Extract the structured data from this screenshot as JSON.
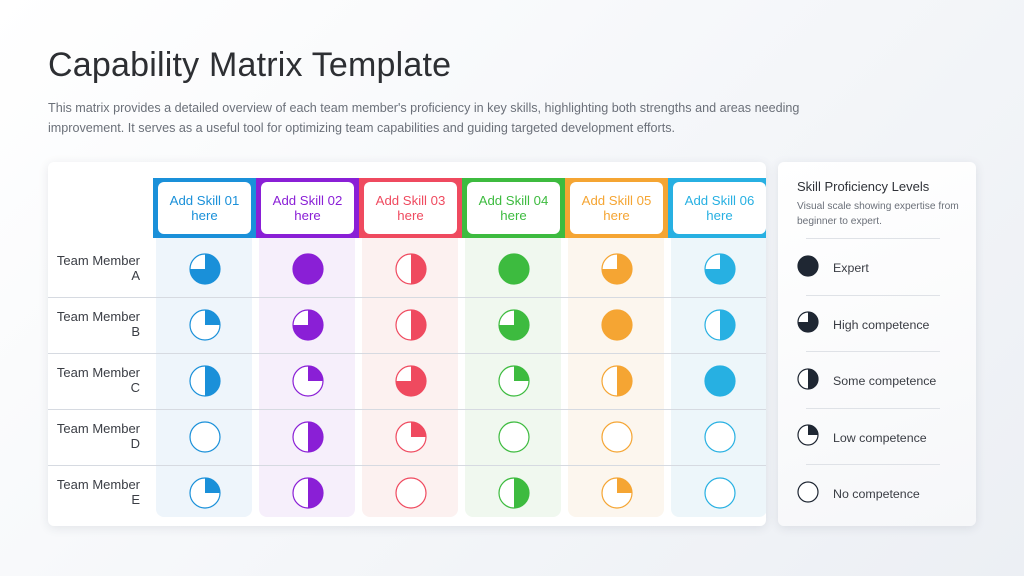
{
  "header": {
    "title": "Capability Matrix Template",
    "description": "This matrix provides a detailed overview of each team member's proficiency in key skills, highlighting both strengths and areas needing improvement. It serves as a useful tool for optimizing team capabilities and guiding targeted development efforts."
  },
  "matrix": {
    "skills": [
      {
        "label": "Add Skill 01 here",
        "color": "#1a90d9",
        "tint": "#eef5fb"
      },
      {
        "label": "Add Skill 02 here",
        "color": "#8a1fd6",
        "tint": "#f6effb"
      },
      {
        "label": "Add Skill 03 here",
        "color": "#ef4a5f",
        "tint": "#fcf1f0"
      },
      {
        "label": "Add Skill 04 here",
        "color": "#3dbb3f",
        "tint": "#f0f8ef"
      },
      {
        "label": "Add Skill 05 here",
        "color": "#f5a533",
        "tint": "#fcf6ee"
      },
      {
        "label": "Add Skill 06 here",
        "color": "#27b0e2",
        "tint": "#edf6fa"
      }
    ],
    "members": [
      {
        "name": "Team Member A",
        "levels": [
          0.75,
          1,
          0.5,
          1,
          0.75,
          0.75
        ]
      },
      {
        "name": "Team Member B",
        "levels": [
          0.25,
          0.75,
          0.5,
          0.75,
          1,
          0.5
        ]
      },
      {
        "name": "Team Member C",
        "levels": [
          0.5,
          0.25,
          0.75,
          0.25,
          0.5,
          1
        ]
      },
      {
        "name": "Team Member D",
        "levels": [
          0,
          0.5,
          0.25,
          0,
          0,
          0
        ]
      },
      {
        "name": "Team Member E",
        "levels": [
          0.25,
          0.5,
          0,
          0.5,
          0.25,
          0
        ]
      }
    ]
  },
  "legend": {
    "title": "Skill Proficiency Levels",
    "subtitle": "Visual scale showing expertise from beginner to expert.",
    "color": "#1f2733",
    "items": [
      {
        "label": "Expert",
        "level": 1
      },
      {
        "label": "High competence",
        "level": 0.75
      },
      {
        "label": "Some competence",
        "level": 0.5
      },
      {
        "label": "Low competence",
        "level": 0.25
      },
      {
        "label": "No competence",
        "level": 0
      }
    ]
  }
}
